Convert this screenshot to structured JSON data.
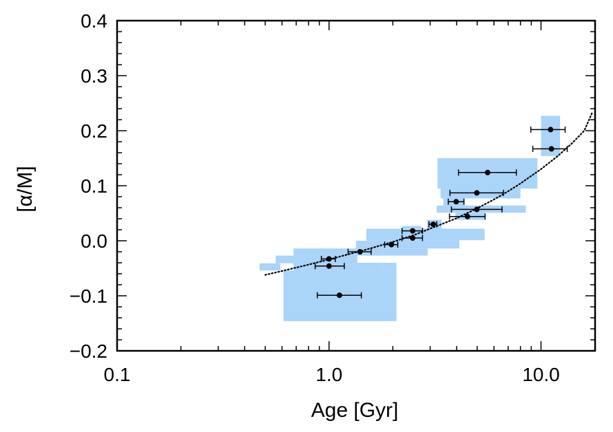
{
  "chart_data": {
    "type": "scatter",
    "title": "",
    "xlabel": "Age [Gyr]",
    "ylabel": "[α/M]",
    "xscale": "log",
    "xlim": [
      0.1,
      18
    ],
    "ylim": [
      -0.2,
      0.4
    ],
    "grid": false,
    "colors": {
      "box": "#aad4f8",
      "point": "#000000",
      "fit": "#000000"
    },
    "x_ticks": [
      {
        "value": 0.1,
        "label": "0.1"
      },
      {
        "value": 1.0,
        "label": "1.0"
      },
      {
        "value": 10.0,
        "label": "10.0"
      }
    ],
    "y_ticks": [
      {
        "value": -0.2,
        "label": "−0.2"
      },
      {
        "value": -0.1,
        "label": "−0.1"
      },
      {
        "value": 0.0,
        "label": "0.0"
      },
      {
        "value": 0.1,
        "label": "0.1"
      },
      {
        "value": 0.2,
        "label": "0.2"
      },
      {
        "value": 0.3,
        "label": "0.3"
      },
      {
        "value": 0.4,
        "label": "0.4"
      }
    ],
    "points": [
      {
        "x": 1.12,
        "y": -0.099,
        "xerr": [
          0.88,
          1.42
        ]
      },
      {
        "x": 1.0,
        "y": -0.046,
        "xerr": [
          0.86,
          1.18
        ]
      },
      {
        "x": 1.0,
        "y": -0.033,
        "xerr": [
          0.92,
          1.07
        ]
      },
      {
        "x": 1.4,
        "y": -0.02,
        "xerr": [
          1.23,
          1.58
        ]
      },
      {
        "x": 1.97,
        "y": -0.007,
        "xerr": [
          1.83,
          2.11
        ]
      },
      {
        "x": 2.48,
        "y": 0.005,
        "xerr": [
          2.21,
          2.76
        ]
      },
      {
        "x": 2.48,
        "y": 0.018,
        "xerr": [
          2.21,
          2.76
        ]
      },
      {
        "x": 3.1,
        "y": 0.03,
        "xerr": [
          2.96,
          3.22
        ]
      },
      {
        "x": 4.5,
        "y": 0.044,
        "xerr": [
          3.7,
          5.45
        ]
      },
      {
        "x": 4.98,
        "y": 0.057,
        "xerr": [
          3.78,
          6.55
        ]
      },
      {
        "x": 3.98,
        "y": 0.071,
        "xerr": [
          3.65,
          4.33
        ]
      },
      {
        "x": 4.98,
        "y": 0.087,
        "xerr": [
          3.72,
          6.65
        ]
      },
      {
        "x": 5.6,
        "y": 0.124,
        "xerr": [
          4.08,
          7.65
        ]
      },
      {
        "x": 11.2,
        "y": 0.167,
        "xerr": [
          9.15,
          13.3
        ]
      },
      {
        "x": 11.1,
        "y": 0.202,
        "xerr": [
          8.95,
          13.0
        ]
      }
    ],
    "uncertainty_boxes": [
      {
        "x": [
          0.47,
          0.59
        ],
        "y": [
          -0.054,
          -0.041
        ]
      },
      {
        "x": [
          0.56,
          0.69
        ],
        "y": [
          -0.041,
          -0.027
        ]
      },
      {
        "x": [
          0.61,
          2.08
        ],
        "y": [
          -0.146,
          -0.054
        ]
      },
      {
        "x": [
          0.68,
          1.36
        ],
        "y": [
          -0.054,
          -0.014
        ]
      },
      {
        "x": [
          0.99,
          1.78
        ],
        "y": [
          -0.054,
          -0.04
        ]
      },
      {
        "x": [
          1.78,
          2.08
        ],
        "y": [
          -0.054,
          -0.04
        ]
      },
      {
        "x": [
          1.34,
          1.78
        ],
        "y": [
          -0.027,
          0.0
        ]
      },
      {
        "x": [
          1.78,
          2.92
        ],
        "y": [
          -0.027,
          -0.014
        ]
      },
      {
        "x": [
          1.5,
          4.12
        ],
        "y": [
          -0.014,
          0.001
        ]
      },
      {
        "x": [
          1.5,
          5.42
        ],
        "y": [
          0.001,
          0.022
        ]
      },
      {
        "x": [
          2.22,
          2.72
        ],
        "y": [
          0.022,
          0.027
        ]
      },
      {
        "x": [
          2.9,
          3.4
        ],
        "y": [
          0.022,
          0.038
        ]
      },
      {
        "x": [
          3.95,
          5.45
        ],
        "y": [
          0.038,
          0.051
        ]
      },
      {
        "x": [
          3.22,
          8.48
        ],
        "y": [
          0.051,
          0.064
        ]
      },
      {
        "x": [
          3.46,
          4.36
        ],
        "y": [
          0.064,
          0.077
        ]
      },
      {
        "x": [
          3.36,
          8.0
        ],
        "y": [
          0.077,
          0.095
        ]
      },
      {
        "x": [
          3.25,
          9.62
        ],
        "y": [
          0.095,
          0.15
        ]
      },
      {
        "x": [
          10.0,
          12.3
        ],
        "y": [
          0.154,
          0.227
        ]
      }
    ],
    "fit_line": {
      "style": "dotted",
      "x": [
        0.5,
        0.6,
        0.75,
        1.0,
        1.25,
        1.5,
        2.0,
        2.5,
        3.0,
        4.0,
        5.0,
        6.0,
        7.0,
        8.0,
        9.0,
        10.0,
        12.0,
        14.0,
        16.0,
        17.5
      ],
      "y": [
        -0.062,
        -0.055,
        -0.046,
        -0.034,
        -0.024,
        -0.016,
        -0.002,
        0.01,
        0.022,
        0.041,
        0.059,
        0.075,
        0.09,
        0.104,
        0.118,
        0.13,
        0.154,
        0.177,
        0.2,
        0.234
      ]
    }
  }
}
